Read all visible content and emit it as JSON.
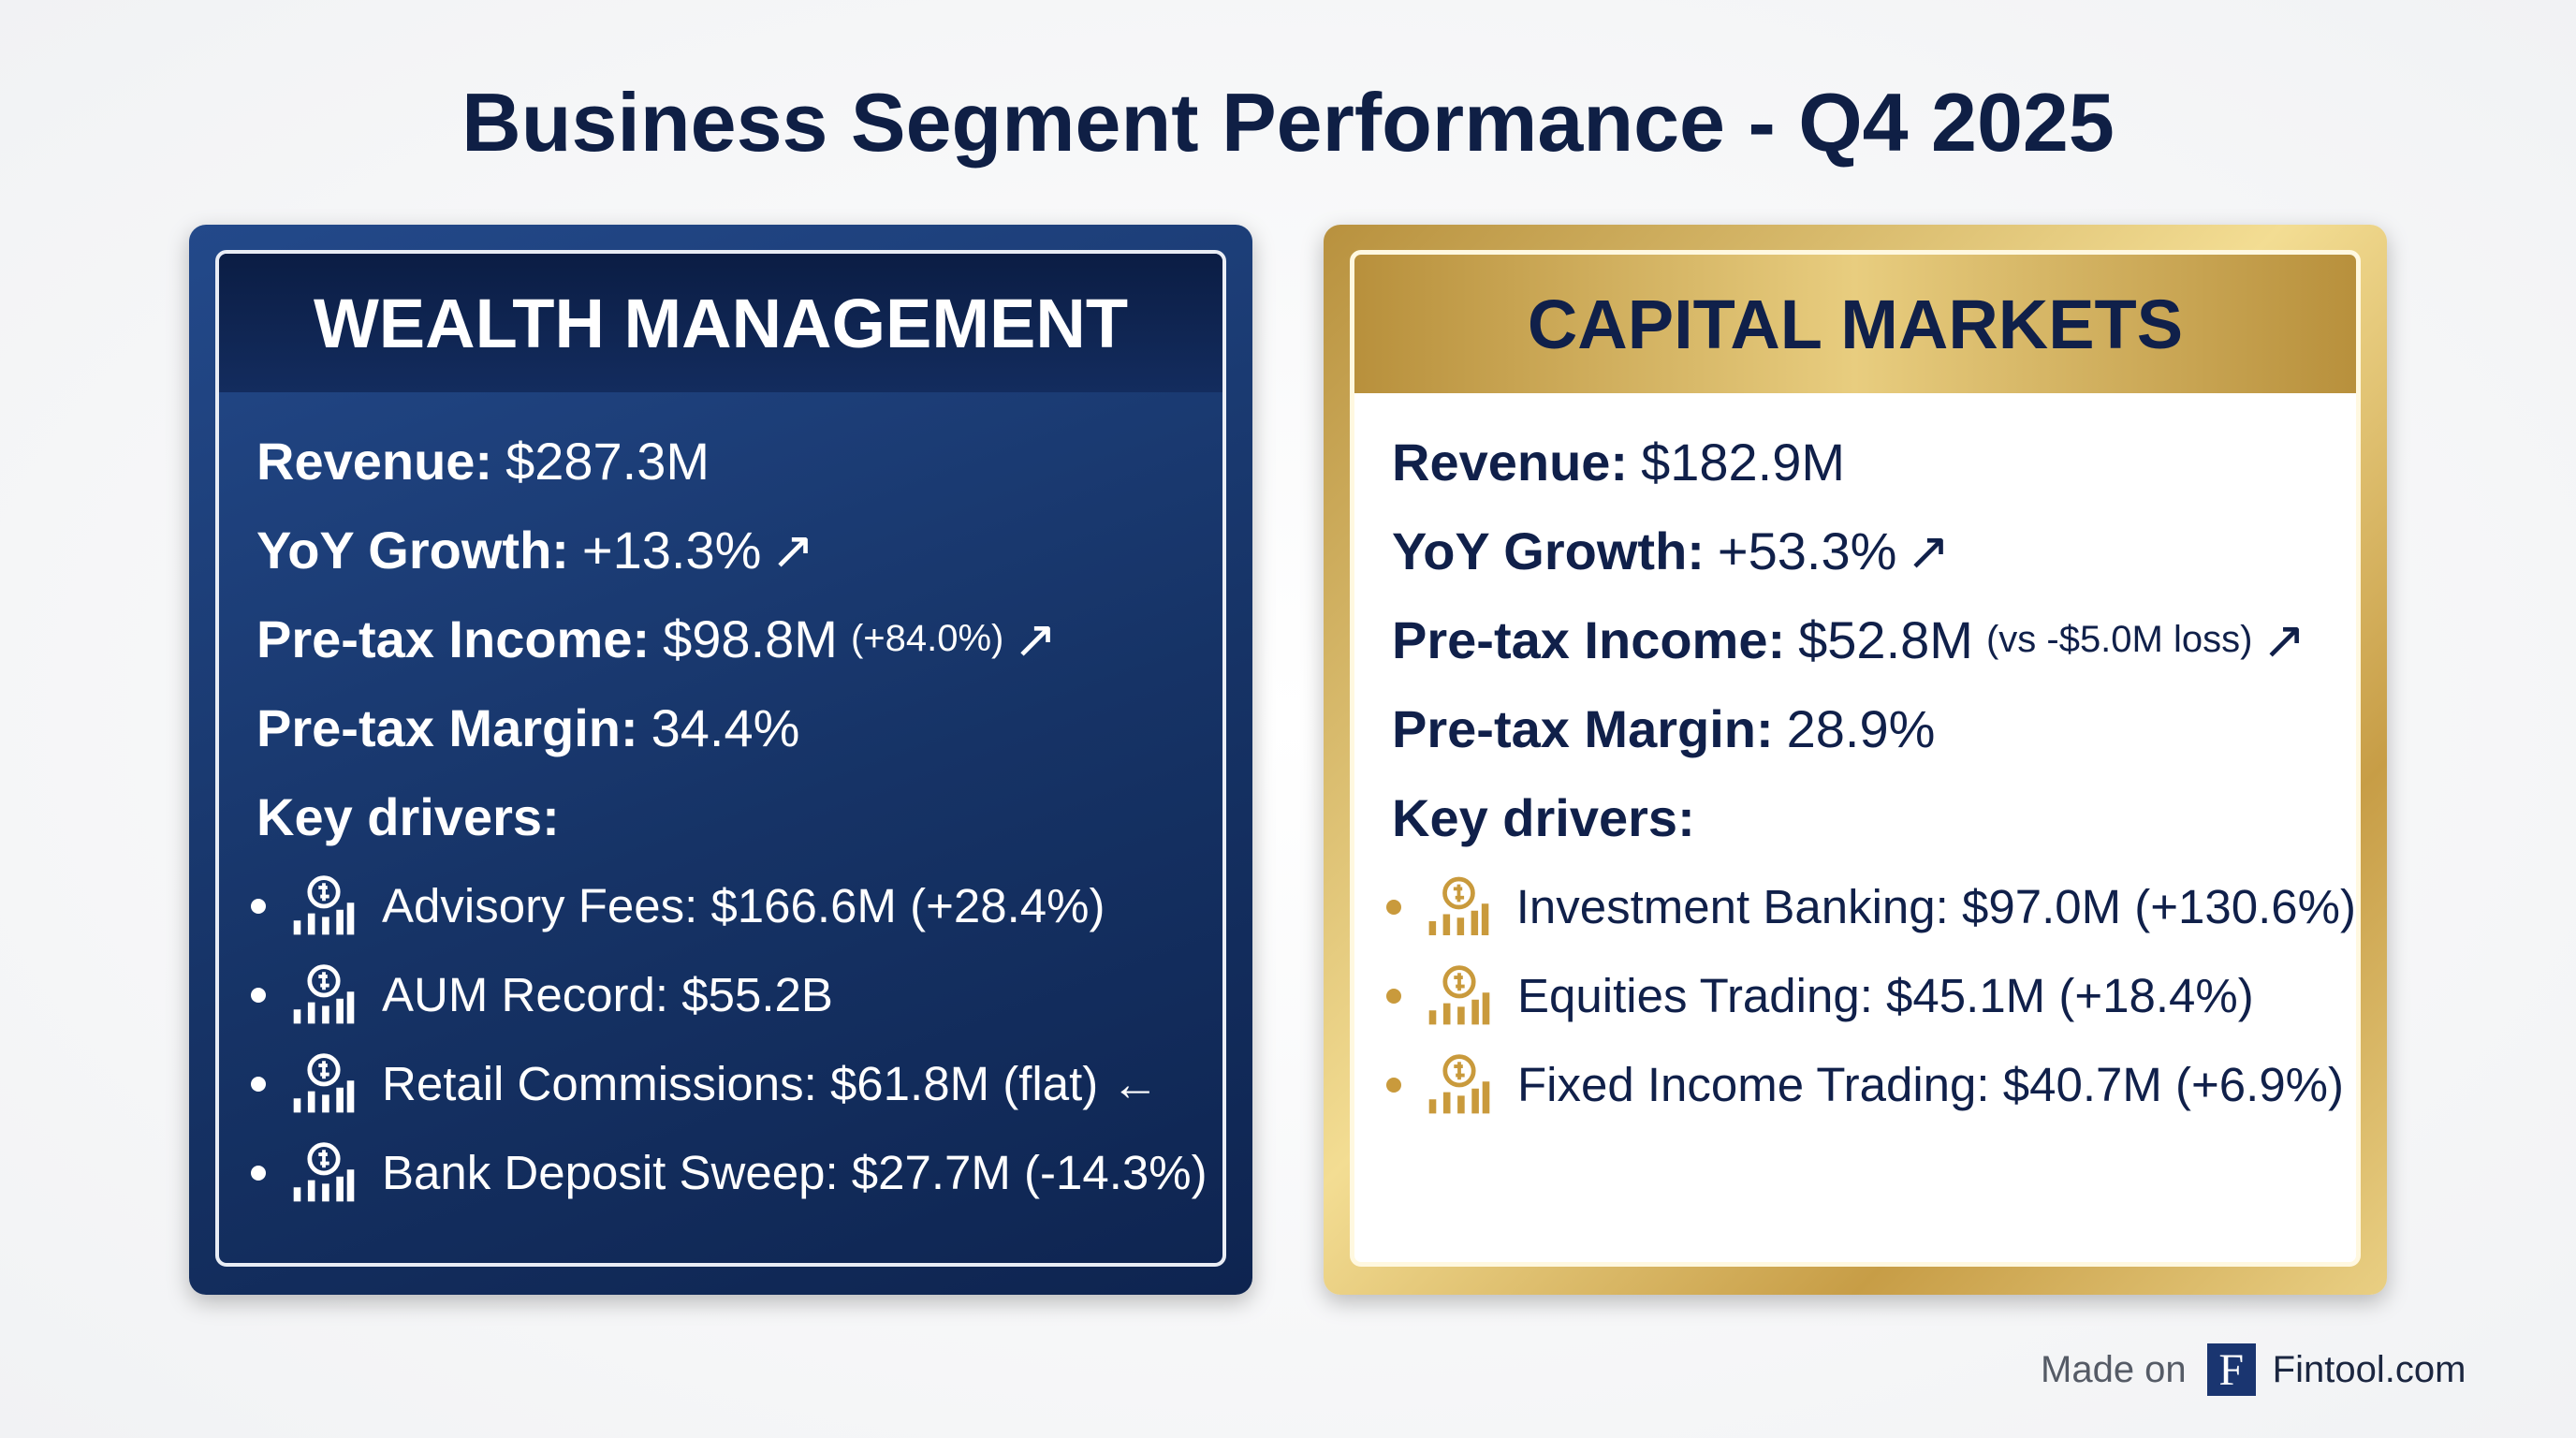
{
  "title": "Business Segment Performance - Q4 2025",
  "panels": [
    {
      "heading": "WEALTH MANAGEMENT",
      "metrics": [
        {
          "label": "Revenue:",
          "value": "$287.3M"
        },
        {
          "label": "YoY Growth:",
          "value": "+13.3%",
          "arrow": "↗"
        },
        {
          "label": "Pre-tax Income:",
          "value": "$98.8M",
          "note": "(+84.0%)",
          "arrow": "↗"
        },
        {
          "label": "Pre-tax Margin:",
          "value": "34.4%"
        }
      ],
      "drivers_heading": "Key drivers:",
      "drivers": [
        {
          "text": "Advisory Fees: $166.6M (+28.4%)"
        },
        {
          "text": "AUM Record: $55.2B"
        },
        {
          "text": "Retail Commissions: $61.8M (flat)",
          "arrow": "←"
        },
        {
          "text": "Bank Deposit Sweep: $27.7M (-14.3%)"
        }
      ]
    },
    {
      "heading": "CAPITAL MARKETS",
      "metrics": [
        {
          "label": "Revenue:",
          "value": "$182.9M"
        },
        {
          "label": "YoY Growth:",
          "value": "+53.3%",
          "arrow": "↗"
        },
        {
          "label": "Pre-tax Income:",
          "value": "$52.8M",
          "note": "(vs -$5.0M loss)",
          "arrow": "↗"
        },
        {
          "label": "Pre-tax Margin:",
          "value": "28.9%"
        }
      ],
      "drivers_heading": "Key drivers:",
      "drivers": [
        {
          "text": "Investment Banking: $97.0M (+130.6%)"
        },
        {
          "text": "Equities Trading: $45.1M (+18.4%)"
        },
        {
          "text": "Fixed Income Trading: $40.7M (+6.9%)"
        }
      ]
    }
  ],
  "footer": {
    "made_on": "Made on",
    "logo": "F",
    "brand": "Fintool.com"
  }
}
